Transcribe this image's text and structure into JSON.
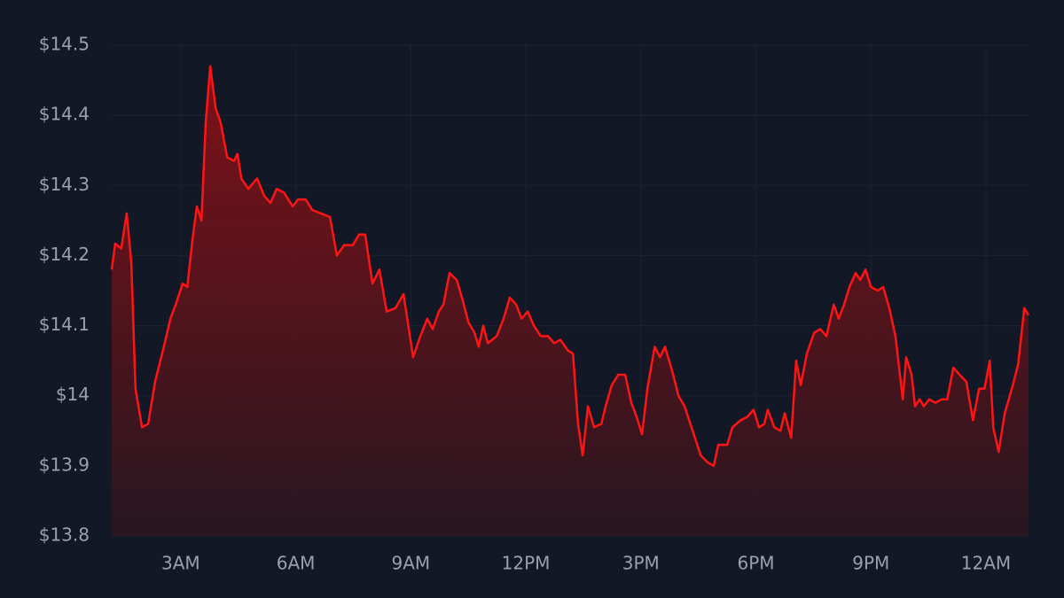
{
  "chart_data": {
    "type": "area",
    "x": [
      1.2,
      1.29,
      1.45,
      1.59,
      1.71,
      1.82,
      1.99,
      2.15,
      2.33,
      2.56,
      2.73,
      2.87,
      3.05,
      3.17,
      3.3,
      3.42,
      3.54,
      3.65,
      3.77,
      3.91,
      4.04,
      4.21,
      4.39,
      4.48,
      4.58,
      4.76,
      4.99,
      5.18,
      5.34,
      5.5,
      5.69,
      5.92,
      6.06,
      6.26,
      6.43,
      6.66,
      6.89,
      7.07,
      7.26,
      7.49,
      7.65,
      7.81,
      8.0,
      8.18,
      8.37,
      8.6,
      8.81,
      9.06,
      9.25,
      9.43,
      9.57,
      9.73,
      9.85,
      10.01,
      10.2,
      10.36,
      10.5,
      10.66,
      10.77,
      10.89,
      11.01,
      11.24,
      11.42,
      11.58,
      11.75,
      11.89,
      12.05,
      12.21,
      12.39,
      12.58,
      12.74,
      12.9,
      13.09,
      13.23,
      13.36,
      13.48,
      13.62,
      13.78,
      13.97,
      14.08,
      14.24,
      14.41,
      14.59,
      14.75,
      14.89,
      15.03,
      15.17,
      15.36,
      15.5,
      15.63,
      15.82,
      15.98,
      16.14,
      16.32,
      16.56,
      16.74,
      16.9,
      17.02,
      17.25,
      17.39,
      17.6,
      17.78,
      17.94,
      18.08,
      18.22,
      18.31,
      18.48,
      18.64,
      18.75,
      18.92,
      19.05,
      19.17,
      19.33,
      19.52,
      19.68,
      19.84,
      20.03,
      20.16,
      20.3,
      20.44,
      20.6,
      20.72,
      20.86,
      21.0,
      21.18,
      21.32,
      21.48,
      21.64,
      21.83,
      21.92,
      22.06,
      22.15,
      22.27,
      22.38,
      22.52,
      22.68,
      22.85,
      22.99,
      23.15,
      23.31,
      23.49,
      23.66,
      23.82,
      23.96,
      24.1,
      24.19,
      24.33,
      24.49,
      24.7,
      24.84,
      25.0,
      25.11
    ],
    "values": [
      14.18,
      14.217,
      14.21,
      14.26,
      14.19,
      14.01,
      13.955,
      13.96,
      14.02,
      14.07,
      14.11,
      14.13,
      14.16,
      14.155,
      14.22,
      14.27,
      14.25,
      14.39,
      14.47,
      14.41,
      14.39,
      14.34,
      14.335,
      14.345,
      14.31,
      14.295,
      14.31,
      14.285,
      14.275,
      14.295,
      14.29,
      14.27,
      14.28,
      14.28,
      14.265,
      14.26,
      14.255,
      14.2,
      14.215,
      14.215,
      14.23,
      14.23,
      14.16,
      14.18,
      14.12,
      14.125,
      14.145,
      14.055,
      14.085,
      14.11,
      14.095,
      14.12,
      14.13,
      14.175,
      14.165,
      14.135,
      14.105,
      14.09,
      14.07,
      14.1,
      14.075,
      14.085,
      14.11,
      14.14,
      14.13,
      14.11,
      14.12,
      14.1,
      14.085,
      14.085,
      14.075,
      14.08,
      14.065,
      14.06,
      13.96,
      13.915,
      13.985,
      13.955,
      13.96,
      13.985,
      14.015,
      14.03,
      14.03,
      13.99,
      13.97,
      13.945,
      14.01,
      14.07,
      14.055,
      14.07,
      14.035,
      14.0,
      13.985,
      13.955,
      13.915,
      13.905,
      13.9,
      13.93,
      13.93,
      13.955,
      13.965,
      13.97,
      13.98,
      13.955,
      13.96,
      13.98,
      13.955,
      13.95,
      13.975,
      13.94,
      14.05,
      14.015,
      14.06,
      14.09,
      14.095,
      14.085,
      14.13,
      14.11,
      14.13,
      14.155,
      14.175,
      14.165,
      14.18,
      14.155,
      14.15,
      14.155,
      14.125,
      14.085,
      13.995,
      14.055,
      14.03,
      13.985,
      13.995,
      13.985,
      13.995,
      13.99,
      13.995,
      13.995,
      14.04,
      14.03,
      14.02,
      13.965,
      14.01,
      14.01,
      14.05,
      13.955,
      13.92,
      13.975,
      14.015,
      14.045,
      14.125,
      14.115
    ],
    "color": "#ff1414",
    "xlim": [
      1.2,
      25.11
    ],
    "xticks": [
      {
        "value": 3,
        "label": "3AM"
      },
      {
        "value": 6,
        "label": "6AM"
      },
      {
        "value": 9,
        "label": "9AM"
      },
      {
        "value": 12,
        "label": "12PM"
      },
      {
        "value": 15,
        "label": "3PM"
      },
      {
        "value": 18,
        "label": "6PM"
      },
      {
        "value": 21,
        "label": "9PM"
      },
      {
        "value": 24,
        "label": "12AM"
      }
    ],
    "ylim": [
      13.8,
      14.5
    ],
    "yticks": [
      {
        "value": 13.8,
        "label": "$13.8"
      },
      {
        "value": 13.9,
        "label": "$13.9"
      },
      {
        "value": 14,
        "label": "$14"
      },
      {
        "value": 14.1,
        "label": "$14.1"
      },
      {
        "value": 14.2,
        "label": "$14.2"
      },
      {
        "value": 14.3,
        "label": "$14.3"
      },
      {
        "value": 14.4,
        "label": "$14.4"
      },
      {
        "value": 14.5,
        "label": "$14.5"
      }
    ],
    "grid": true
  }
}
